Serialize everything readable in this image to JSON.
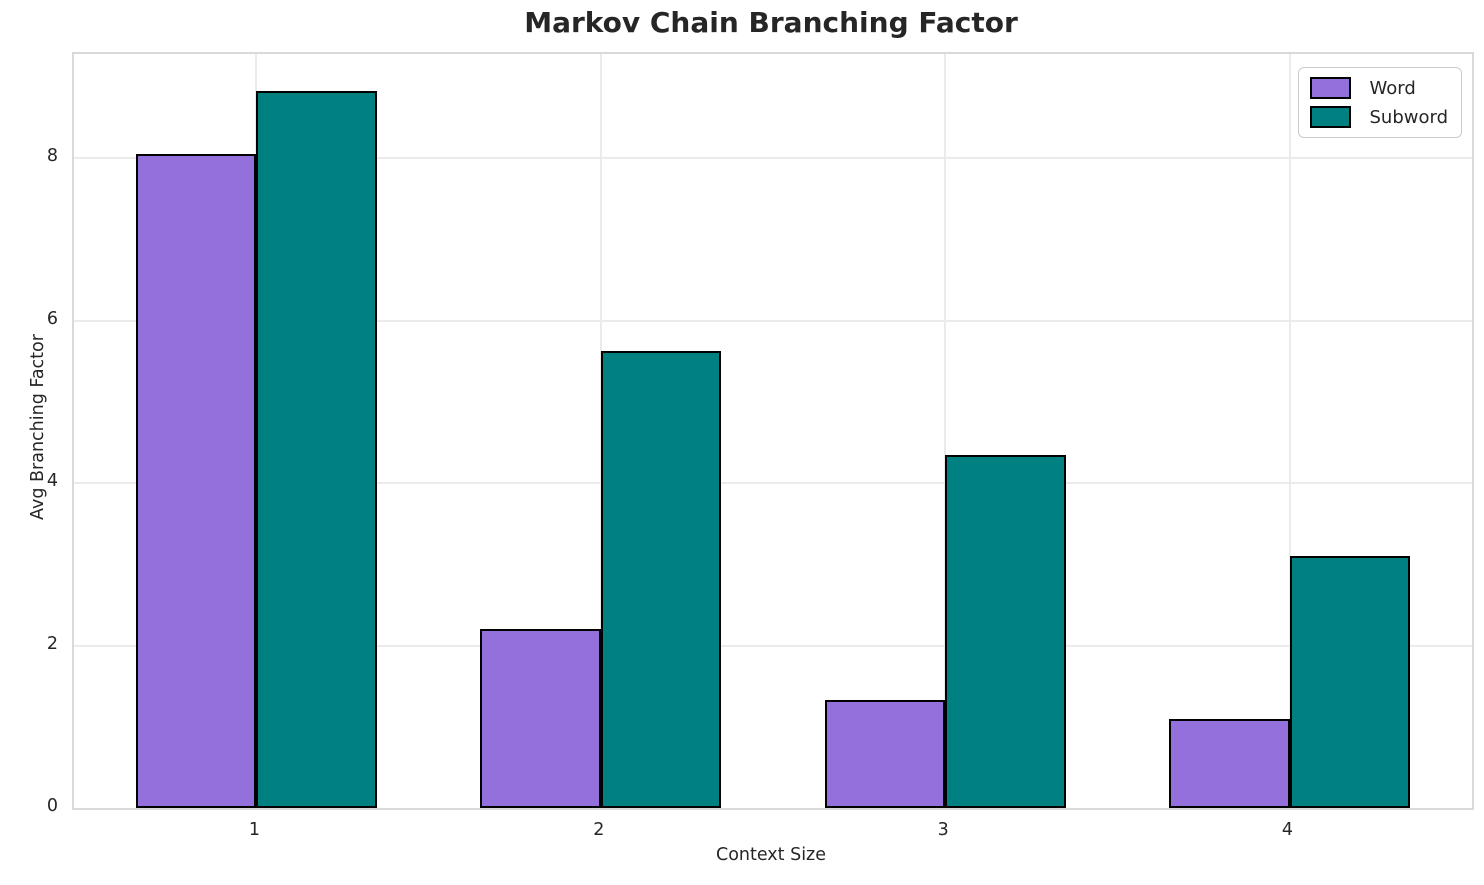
{
  "chart_data": {
    "type": "bar",
    "title": "Markov Chain Branching Factor",
    "xlabel": "Context Size",
    "ylabel": "Avg Branching Factor",
    "categories": [
      "1",
      "2",
      "3",
      "4"
    ],
    "series": [
      {
        "name": "Word",
        "color": "#9370DB",
        "values": [
          8.05,
          2.2,
          1.33,
          1.1
        ]
      },
      {
        "name": "Subword",
        "color": "#008080",
        "values": [
          8.82,
          5.62,
          4.35,
          3.1
        ]
      }
    ],
    "yticks": [
      0,
      2,
      4,
      6,
      8
    ],
    "ylim": [
      0,
      9.28
    ],
    "xlim": [
      -0.53,
      3.53
    ],
    "bar_width": 0.35,
    "bar_edge_color": "#000000",
    "grid": true,
    "gridline_color": "#ebebeb",
    "spine_color": "#d9d9d9",
    "text_color": "#262626",
    "legend_position": "upper right"
  }
}
